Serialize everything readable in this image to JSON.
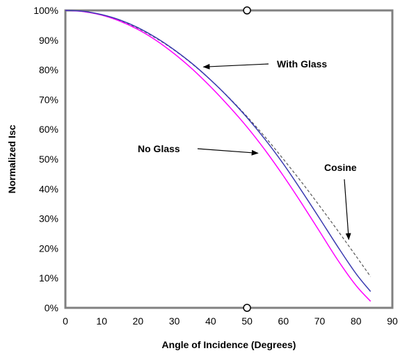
{
  "chart_data": {
    "type": "line",
    "title": "",
    "xlabel": "Angle of Incidence (Degrees)",
    "ylabel": "Normalized Isc",
    "xlim": [
      0,
      90
    ],
    "ylim": [
      0,
      100
    ],
    "x_ticks": [
      "0",
      "10",
      "20",
      "30",
      "40",
      "50",
      "60",
      "70",
      "80",
      "90"
    ],
    "y_ticks": [
      "0%",
      "10%",
      "20%",
      "30%",
      "40%",
      "50%",
      "60%",
      "70%",
      "80%",
      "90%",
      "100%"
    ],
    "grid": false,
    "legend": "none",
    "series": [
      {
        "label": "With Glass",
        "color": "#3a3ab0",
        "style": "solid",
        "x": [
          0,
          5,
          10,
          15,
          20,
          25,
          30,
          35,
          40,
          45,
          50,
          55,
          60,
          65,
          70,
          75,
          80,
          84
        ],
        "y": [
          100,
          99.7,
          98.6,
          96.8,
          94.2,
          90.8,
          86.7,
          82.0,
          76.6,
          70.6,
          64.0,
          56.6,
          48.4,
          39.4,
          30.0,
          20.5,
          11.5,
          5.5
        ]
      },
      {
        "label": "No Glass",
        "color": "#ff00ff",
        "style": "solid",
        "x": [
          0,
          5,
          10,
          15,
          20,
          25,
          30,
          35,
          40,
          45,
          50,
          55,
          60,
          65,
          70,
          75,
          80,
          84
        ],
        "y": [
          100,
          99.6,
          98.4,
          96.4,
          93.6,
          89.9,
          85.4,
          80.2,
          74.3,
          67.8,
          60.8,
          53.0,
          44.4,
          35.2,
          25.6,
          16.0,
          7.5,
          2.2
        ]
      },
      {
        "label": "Cosine",
        "color": "#555555",
        "style": "dashed",
        "x": [
          0,
          5,
          10,
          15,
          20,
          25,
          30,
          35,
          40,
          45,
          50,
          55,
          60,
          65,
          70,
          75,
          80,
          84
        ],
        "y": [
          100,
          99.6,
          98.5,
          96.6,
          94.0,
          90.6,
          86.6,
          81.9,
          76.6,
          70.7,
          64.3,
          57.4,
          50.0,
          42.3,
          34.2,
          25.9,
          17.4,
          10.5
        ]
      }
    ],
    "annotations": [
      {
        "text": "With Glass",
        "arrow_to": [
          38,
          81
        ]
      },
      {
        "text": "No Glass",
        "arrow_to": [
          53,
          52
        ]
      },
      {
        "text": "Cosine",
        "arrow_to": [
          78,
          23
        ]
      }
    ],
    "markers": [
      {
        "x": 50,
        "y": 100
      },
      {
        "x": 50,
        "y": 0
      }
    ]
  }
}
